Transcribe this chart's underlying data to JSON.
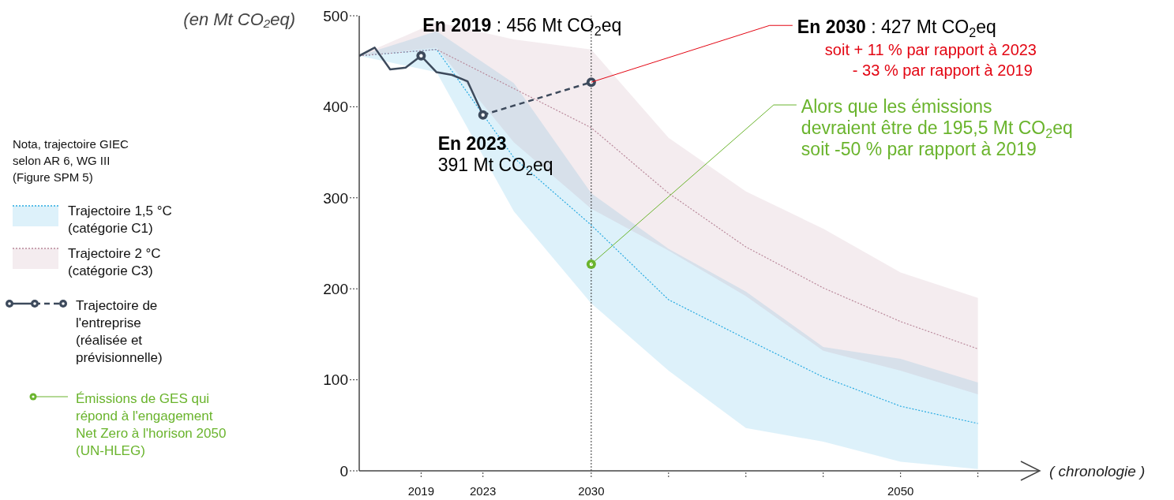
{
  "chart_data": {
    "type": "line",
    "ylabel": "(en Mt CO₂eq)",
    "xlabel": "( chronologie )",
    "xlim": [
      2015,
      2059
    ],
    "xticks": [
      2019,
      2023,
      2030,
      {
        "value": 2035,
        "label": null
      },
      {
        "value": 2040,
        "label": null
      },
      {
        "value": 2045,
        "label": null
      },
      2050,
      {
        "value": 2055,
        "label": null
      }
    ],
    "ylim": [
      0,
      500
    ],
    "yticks": [
      0,
      100,
      200,
      300,
      400,
      500
    ],
    "grid": false,
    "legend": "left",
    "series": [
      {
        "name": "Trajectoire 1,5 °C (catégorie C1)",
        "type": "line",
        "color": "#29abe2",
        "line_style": "dotted",
        "x": [
          2015,
          2020,
          2025,
          2030,
          2035,
          2040,
          2045,
          2050,
          2055
        ],
        "values": [
          456,
          463,
          344,
          270,
          188,
          145,
          103,
          71,
          52
        ],
        "lower": [
          456,
          438,
          285,
          184,
          110,
          47,
          32,
          10,
          2
        ],
        "upper": [
          456,
          483,
          426,
          305,
          244,
          197,
          136,
          123,
          97
        ]
      },
      {
        "name": "Trajectoire 2 °C (catégorie C3)",
        "type": "line",
        "color": "#b9899b",
        "line_style": "dotted",
        "x": [
          2015,
          2020,
          2025,
          2030,
          2035,
          2040,
          2045,
          2050,
          2055
        ],
        "values": [
          456,
          463,
          420,
          377,
          305,
          246,
          201,
          164,
          134
        ],
        "lower": [
          456,
          465,
          361,
          288,
          242,
          192,
          132,
          110,
          84
        ],
        "upper": [
          456,
          493,
          474,
          463,
          366,
          307,
          266,
          218,
          190
        ]
      },
      {
        "name": "Trajectoire de l'entreprise (réalisée et prévisionnelle)",
        "type": "line",
        "color": "#3d4a5c",
        "line_style": "solid",
        "marker": "none",
        "x": [
          2015,
          2016,
          2017,
          2018,
          2019,
          2020,
          2021,
          2022,
          2023
        ],
        "values": [
          456,
          465,
          441,
          443,
          456,
          438,
          435,
          428,
          391
        ]
      },
      {
        "type": "line",
        "color": "#3d4a5c",
        "line_style": "dashed",
        "marker": "none",
        "x": [
          2023,
          2030
        ],
        "values": [
          391,
          427
        ]
      },
      {
        "type": "scatter",
        "color": "#3d4a5c",
        "marker": "circle",
        "x": [
          2019,
          2023,
          2030
        ],
        "values": [
          456,
          391,
          427
        ]
      },
      {
        "name": "Émissions de GES qui répond à l'engagement Net Zero à l'horison 2050 (UN-HLEG)",
        "type": "scatter",
        "color": "#6ab42d",
        "marker": "circle",
        "x": [
          2030
        ],
        "values": [
          227
        ]
      }
    ],
    "ref_lines": [
      {
        "axis": "x",
        "value": 2030,
        "color": "#333333",
        "line_style": "dotted"
      }
    ],
    "annotations": [
      {
        "text": "En 2019 : 456 Mt CO$_{2}$eq",
        "x": 2019,
        "y": 456
      },
      {
        "text": "En 2023\n391 Mt CO$_{2}$eq",
        "x": 2023,
        "y": 391
      },
      {
        "text": "En 2030 : 427 Mt CO$_{2}$eq\nsoit  + 11 % par rapport à 2023\n- 33 % par rapport à 2019",
        "x": 2030,
        "y": 427
      },
      {
        "text": "Alors que les émissions\ndevraient être de 195,5 Mt CO$_{2}$eq\nsoit -50 % par rapport à 2019",
        "x": 2030,
        "y": 227
      },
      "Nota, trajectoire GIEC\nselon AR 6, WG III\n(Figure SPM 5)"
    ]
  }
}
